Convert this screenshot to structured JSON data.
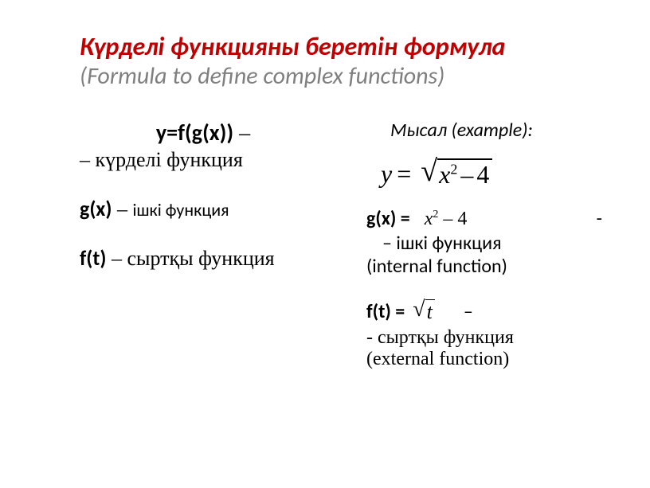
{
  "title": {
    "main": "Күрделі функцияны беретін формула",
    "sub": "(Formula to define complex functions)"
  },
  "left": {
    "formula": "y=f(g(x))",
    "dash": " –",
    "complex_desc": "– күрделі   функция",
    "gx": "g(x)",
    "gx_dash": " – ",
    "gx_desc": "ішкі  функция",
    "ft": "f(t)",
    "ft_dash": "  – ",
    "ft_desc": "сыртқы функция"
  },
  "right": {
    "example_label": "Мысал (example):",
    "eq_lhs": "y",
    "eq_body_x": "x",
    "eq_body_sup": "2",
    "eq_body_minus": "–",
    "eq_body_num": "4",
    "gx_label": "g(x) =",
    "gx_trail": "-",
    "gx_inner_x": "x",
    "gx_inner_sup": "2",
    "gx_inner_minus": "–",
    "gx_inner_num": "4",
    "gx_desc": "– ішкі  функция",
    "gx_desc_en": "(internal function)",
    "ft_label": "f(t) =",
    "ft_body": "t",
    "ft_trail": "–",
    "ft_desc": " - сыртқы  функция",
    "ft_desc_en": "(external function)"
  },
  "colors": {
    "title_main": "#c00000",
    "title_sub": "#7f7f7f",
    "text": "#000000",
    "background": "#ffffff"
  }
}
